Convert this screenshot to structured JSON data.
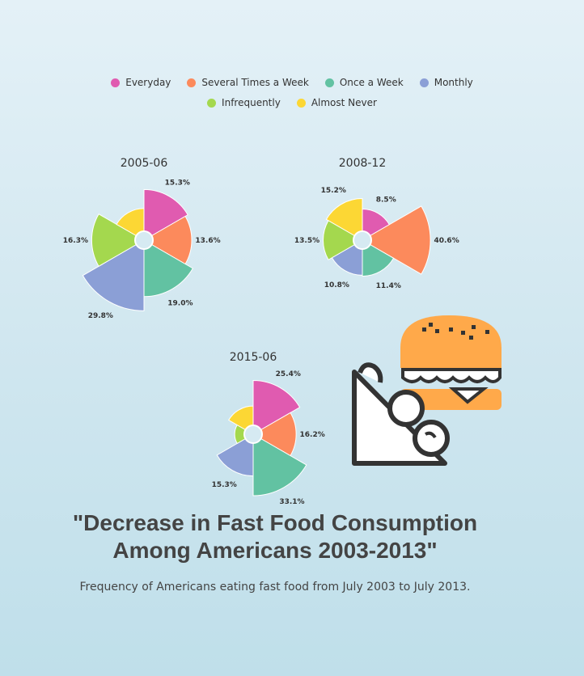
{
  "legend": [
    {
      "label": "Everyday",
      "color": "#e05bb0"
    },
    {
      "label": "Several Times a Week",
      "color": "#fc8a5c"
    },
    {
      "label": "Once a Week",
      "color": "#62c2a2"
    },
    {
      "label": "Monthly",
      "color": "#8b9fd6"
    },
    {
      "label": "Infrequently",
      "color": "#a4d84e"
    },
    {
      "label": "Almost Never",
      "color": "#fcd734"
    }
  ],
  "title": "\"Decrease in Fast Food Consumption\nAmong Americans 2003-2013\"",
  "subtitle": "Frequency of Americans eating fast food from July 2003 to July 2013.",
  "chart_data": [
    {
      "type": "pie",
      "variant": "nightingale-rose",
      "title": "2005-06",
      "categories": [
        "Everyday",
        "Several Times a Week",
        "Once a Week",
        "Monthly",
        "Infrequently",
        "Almost Never"
      ],
      "values": [
        15.3,
        13.6,
        19.0,
        29.8,
        16.3,
        6.0
      ],
      "labels": [
        "15.3%",
        "13.6%",
        "19.0%",
        "29.8%",
        "16.3%",
        ""
      ]
    },
    {
      "type": "pie",
      "variant": "nightingale-rose",
      "title": "2008-12",
      "categories": [
        "Everyday",
        "Several Times a Week",
        "Once a Week",
        "Monthly",
        "Infrequently",
        "Almost Never"
      ],
      "values": [
        8.5,
        40.6,
        11.4,
        10.8,
        13.5,
        15.2
      ],
      "labels": [
        "8.5%",
        "40.6%",
        "11.4%",
        "10.8%",
        "13.5%",
        "15.2%"
      ]
    },
    {
      "type": "pie",
      "variant": "nightingale-rose",
      "title": "2015-06",
      "categories": [
        "Everyday",
        "Several Times a Week",
        "Once a Week",
        "Monthly",
        "Infrequently",
        "Almost Never"
      ],
      "values": [
        25.4,
        16.2,
        33.1,
        15.3,
        3.0,
        7.0
      ],
      "labels": [
        "25.4%",
        "16.2%",
        "33.1%",
        "15.3%",
        "",
        ""
      ]
    }
  ]
}
